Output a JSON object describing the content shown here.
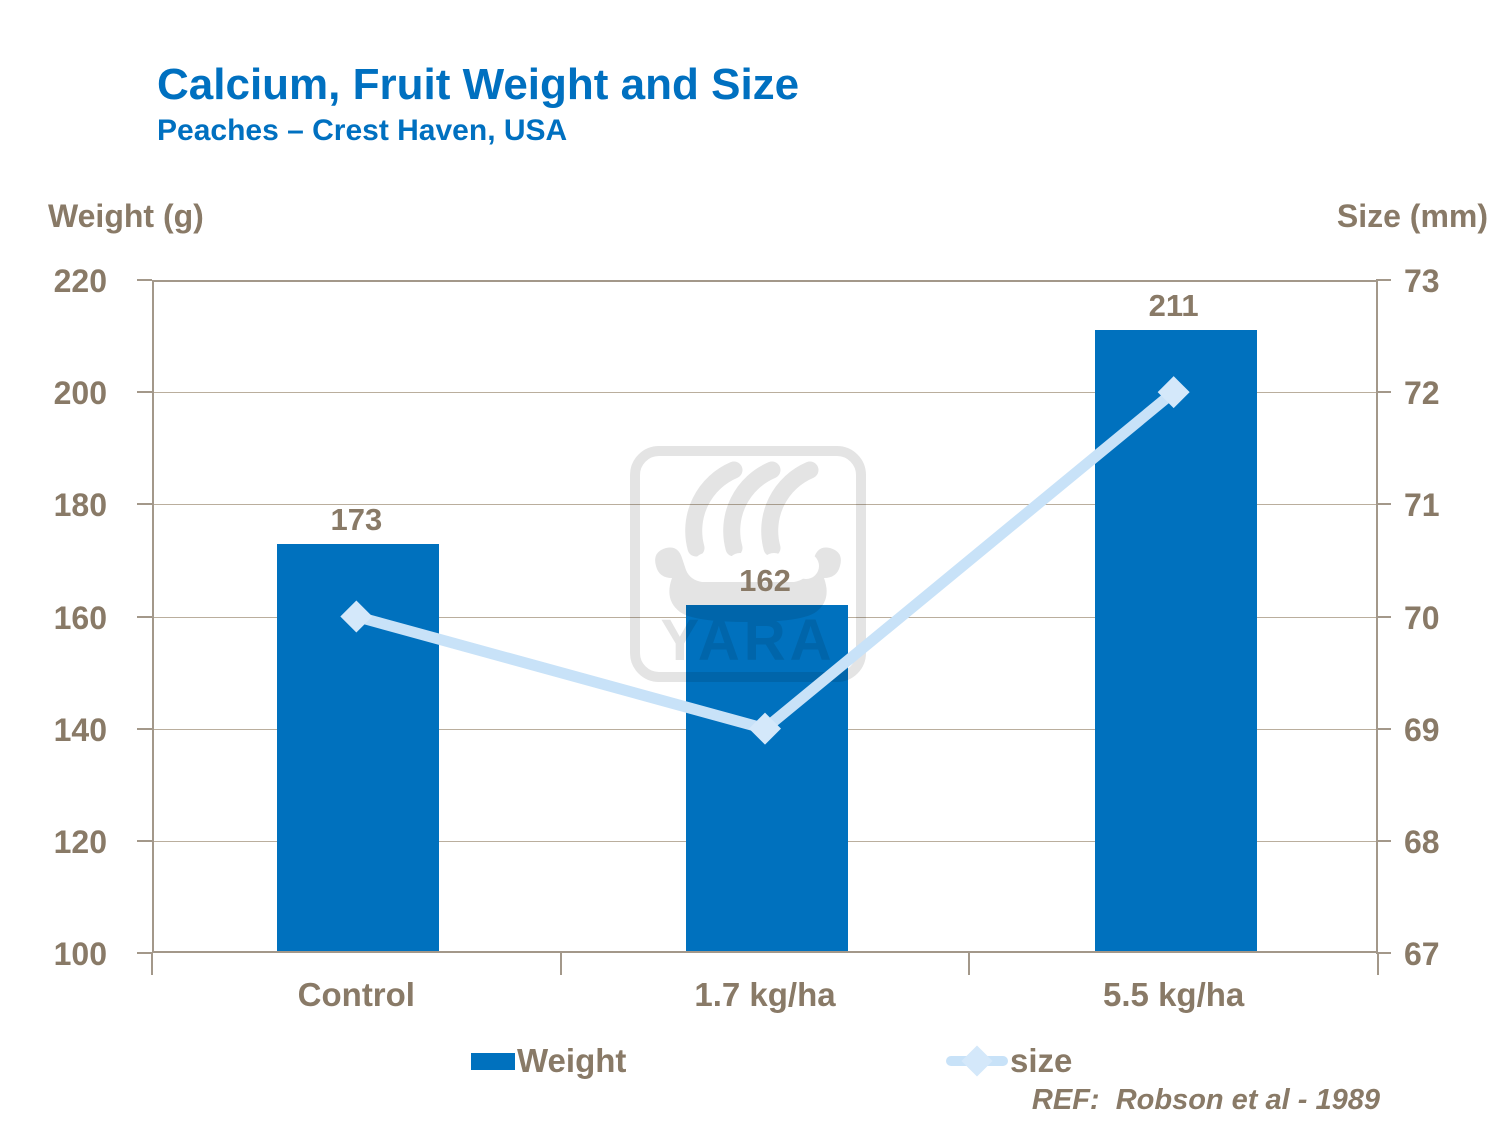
{
  "header": {
    "title": "Calcium, Fruit Weight and Size",
    "subtitle": "Peaches – Crest Haven, USA"
  },
  "footer": {
    "ref_label": "REF:  Robson et al - 1989"
  },
  "watermark": {
    "name": "yara-logo",
    "text": "YARA"
  },
  "colors": {
    "title_blue": "#0070C0",
    "bar_blue": "#0071BE",
    "text_brown": "#897A67",
    "grid_line": "#BAAE9D",
    "plot_border": "#A3988A",
    "series_line_lightblue": "#C8E2F8",
    "marker_lightblue": "#D4E8FA",
    "watermark_gray": "#E4E4E4"
  },
  "chart_data": {
    "type": "bar",
    "combo": "bar+line",
    "categories": [
      "Control",
      "1.7 kg/ha",
      "5.5 kg/ha"
    ],
    "series": [
      {
        "name": "Weight",
        "type": "bar",
        "axis": "left",
        "values": [
          173,
          162,
          211
        ]
      },
      {
        "name": "size",
        "type": "line",
        "axis": "right",
        "values": [
          70,
          69,
          72
        ]
      }
    ],
    "left_axis": {
      "label": "Weight (g)",
      "min": 100,
      "max": 220,
      "step": 20,
      "ticks": [
        220,
        200,
        180,
        160,
        140,
        120,
        100
      ]
    },
    "right_axis": {
      "label": "Size (mm)",
      "min": 67,
      "max": 73,
      "step": 1,
      "ticks": [
        73,
        72,
        71,
        70,
        69,
        68,
        67
      ]
    },
    "grid": true,
    "legend_position": "bottom",
    "legend": [
      {
        "label": "Weight",
        "marker": "square"
      },
      {
        "label": "size",
        "marker": "line-diamond"
      }
    ],
    "bar_value_labels": [
      173,
      162,
      211
    ]
  }
}
